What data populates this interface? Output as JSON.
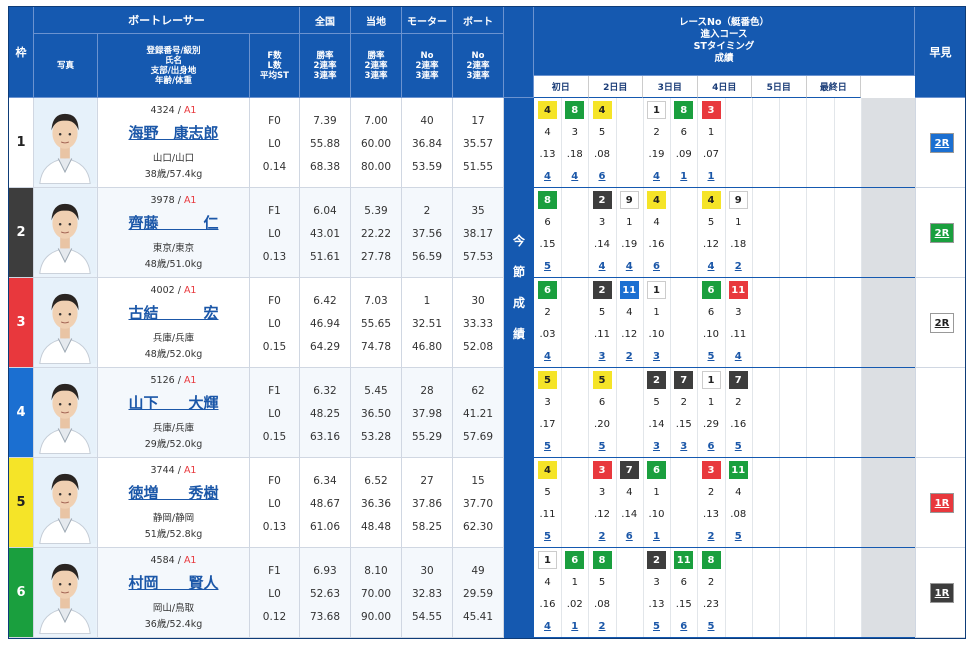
{
  "headers": {
    "waku": "枠",
    "boat_racer": "ボートレーサー",
    "photo": "写真",
    "racer_info": [
      "登録番号/級別",
      "氏名",
      "支部/出身地",
      "年齢/体重"
    ],
    "fl": [
      "F数",
      "L数",
      "平均ST"
    ],
    "national": "全国",
    "national_sub": [
      "勝率",
      "2連率",
      "3連率"
    ],
    "local": "当地",
    "local_sub": [
      "勝率",
      "2連率",
      "3連率"
    ],
    "motor": "モーター",
    "motor_sub": [
      "No",
      "2連率",
      "3連率"
    ],
    "boat": "ボート",
    "boat_sub": [
      "No",
      "2連率",
      "3連率"
    ],
    "race_info": [
      "レースNo（艇番色）",
      "進入コース",
      "STタイミング",
      "成績"
    ],
    "days": [
      "初日",
      "2日目",
      "3日目",
      "4日目",
      "5日目",
      "最終日"
    ],
    "side_label": [
      "今",
      "節",
      "成",
      "績"
    ],
    "early": "早見"
  },
  "colors": {
    "1": "#ffffff",
    "2": "#3d3d3d",
    "3": "#e8383d",
    "4": "#1b6fd1",
    "5": "#f5e428",
    "6": "#1a9f3e",
    "blue": "#1559b0"
  },
  "racers": [
    {
      "waku": "1",
      "reg": "4324",
      "class": "A1",
      "name": "海野　康志郎",
      "branch": "山口/山口",
      "age": "38歳/57.4kg",
      "f": "F0",
      "l": "L0",
      "st": "0.14",
      "nat": [
        "7.39",
        "55.88",
        "68.38"
      ],
      "loc": [
        "7.00",
        "60.00",
        "80.00"
      ],
      "motor": [
        "40",
        "36.84",
        "53.59"
      ],
      "boat": [
        "17",
        "35.57",
        "51.55"
      ],
      "races": [
        [
          "4",
          "8",
          "4",
          "",
          "1",
          "8",
          "3",
          "",
          "",
          "",
          "",
          ""
        ],
        [
          "4",
          "3",
          "5",
          "",
          "2",
          "6",
          "1",
          "",
          "",
          "",
          "",
          ""
        ],
        [
          ".13",
          ".18",
          ".08",
          "",
          ".19",
          ".09",
          ".07",
          "",
          "",
          "",
          "",
          ""
        ],
        [
          "4",
          "4",
          "6",
          "",
          "4",
          "1",
          "1",
          "",
          "",
          "",
          "",
          ""
        ]
      ],
      "early": "2R",
      "early_color": "#1b6fd1"
    },
    {
      "waku": "2",
      "reg": "3978",
      "class": "A1",
      "name": "齊藤　　　仁",
      "branch": "東京/東京",
      "age": "48歳/51.0kg",
      "f": "F1",
      "l": "L0",
      "st": "0.13",
      "nat": [
        "6.04",
        "43.01",
        "51.61"
      ],
      "loc": [
        "5.39",
        "22.22",
        "27.78"
      ],
      "motor": [
        "2",
        "37.56",
        "56.59"
      ],
      "boat": [
        "35",
        "38.17",
        "57.53"
      ],
      "races": [
        [
          "8",
          "",
          "2",
          "9",
          "4",
          "",
          "4",
          "9",
          "",
          "",
          "",
          ""
        ],
        [
          "6",
          "",
          "3",
          "1",
          "4",
          "",
          "5",
          "1",
          "",
          "",
          "",
          ""
        ],
        [
          ".15",
          "",
          ".14",
          ".19",
          ".16",
          "",
          ".12",
          ".18",
          "",
          "",
          "",
          ""
        ],
        [
          "5",
          "",
          "4",
          "4",
          "6",
          "",
          "4",
          "2",
          "",
          "",
          "",
          ""
        ]
      ],
      "early": "2R",
      "early_color": "#1a9f3e"
    },
    {
      "waku": "3",
      "reg": "4002",
      "class": "A1",
      "name": "古結　　　宏",
      "branch": "兵庫/兵庫",
      "age": "48歳/52.0kg",
      "f": "F0",
      "l": "L0",
      "st": "0.15",
      "nat": [
        "6.42",
        "46.94",
        "64.29"
      ],
      "loc": [
        "7.03",
        "55.65",
        "74.78"
      ],
      "motor": [
        "1",
        "32.51",
        "46.80"
      ],
      "boat": [
        "30",
        "33.33",
        "52.08"
      ],
      "races": [
        [
          "6",
          "",
          "2",
          "11",
          "1",
          "",
          "6",
          "11",
          "",
          "",
          "",
          ""
        ],
        [
          "2",
          "",
          "5",
          "4",
          "1",
          "",
          "6",
          "3",
          "",
          "",
          "",
          ""
        ],
        [
          ".03",
          "",
          ".11",
          ".12",
          ".10",
          "",
          ".10",
          ".11",
          "",
          "",
          "",
          ""
        ],
        [
          "4",
          "",
          "3",
          "2",
          "3",
          "",
          "5",
          "4",
          "",
          "",
          "",
          ""
        ]
      ],
      "early": "2R",
      "early_color": "#ffffff"
    },
    {
      "waku": "4",
      "reg": "5126",
      "class": "A1",
      "name": "山下　　大輝",
      "branch": "兵庫/兵庫",
      "age": "29歳/52.0kg",
      "f": "F1",
      "l": "L0",
      "st": "0.15",
      "nat": [
        "6.32",
        "48.25",
        "63.16"
      ],
      "loc": [
        "5.45",
        "36.50",
        "53.28"
      ],
      "motor": [
        "28",
        "37.98",
        "55.29"
      ],
      "boat": [
        "62",
        "41.21",
        "57.69"
      ],
      "races": [
        [
          "5",
          "",
          "5",
          "",
          "2",
          "7",
          "1",
          "7",
          "",
          "",
          "",
          ""
        ],
        [
          "3",
          "",
          "6",
          "",
          "5",
          "2",
          "1",
          "2",
          "",
          "",
          "",
          ""
        ],
        [
          ".17",
          "",
          ".20",
          "",
          ".14",
          ".15",
          ".29",
          ".16",
          "",
          "",
          "",
          ""
        ],
        [
          "5",
          "",
          "5",
          "",
          "3",
          "3",
          "6",
          "5",
          "",
          "",
          "",
          ""
        ]
      ],
      "early": "",
      "early_color": ""
    },
    {
      "waku": "5",
      "reg": "3744",
      "class": "A1",
      "name": "徳増　　秀樹",
      "branch": "静岡/静岡",
      "age": "51歳/52.8kg",
      "f": "F0",
      "l": "L0",
      "st": "0.13",
      "nat": [
        "6.34",
        "48.67",
        "61.06"
      ],
      "loc": [
        "6.52",
        "36.36",
        "48.48"
      ],
      "motor": [
        "27",
        "37.86",
        "58.25"
      ],
      "boat": [
        "15",
        "37.70",
        "62.30"
      ],
      "races": [
        [
          "4",
          "",
          "3",
          "7",
          "6",
          "",
          "3",
          "11",
          "",
          "",
          "",
          ""
        ],
        [
          "5",
          "",
          "3",
          "4",
          "1",
          "",
          "2",
          "4",
          "",
          "",
          "",
          ""
        ],
        [
          ".11",
          "",
          ".12",
          ".14",
          ".10",
          "",
          ".13",
          ".08",
          "",
          "",
          "",
          ""
        ],
        [
          "5",
          "",
          "2",
          "6",
          "1",
          "",
          "2",
          "5",
          "",
          "",
          "",
          ""
        ]
      ],
      "early": "1R",
      "early_color": "#e8383d"
    },
    {
      "waku": "6",
      "reg": "4584",
      "class": "A1",
      "name": "村岡　　賢人",
      "branch": "岡山/鳥取",
      "age": "36歳/52.4kg",
      "f": "F1",
      "l": "L0",
      "st": "0.12",
      "nat": [
        "6.93",
        "52.63",
        "73.68"
      ],
      "loc": [
        "8.10",
        "70.00",
        "90.00"
      ],
      "motor": [
        "30",
        "32.83",
        "54.55"
      ],
      "boat": [
        "49",
        "29.59",
        "45.41"
      ],
      "races": [
        [
          "1",
          "6",
          "8",
          "",
          "2",
          "11",
          "8",
          "",
          "",
          "",
          "",
          ""
        ],
        [
          "4",
          "1",
          "5",
          "",
          "3",
          "6",
          "2",
          "",
          "",
          "",
          "",
          ""
        ],
        [
          ".16",
          ".02",
          ".08",
          "",
          ".13",
          ".15",
          ".23",
          "",
          "",
          "",
          "",
          ""
        ],
        [
          "4",
          "1",
          "2",
          "",
          "5",
          "6",
          "5",
          "",
          "",
          "",
          "",
          ""
        ]
      ],
      "early": "1R",
      "early_color": "#3d3d3d"
    }
  ]
}
